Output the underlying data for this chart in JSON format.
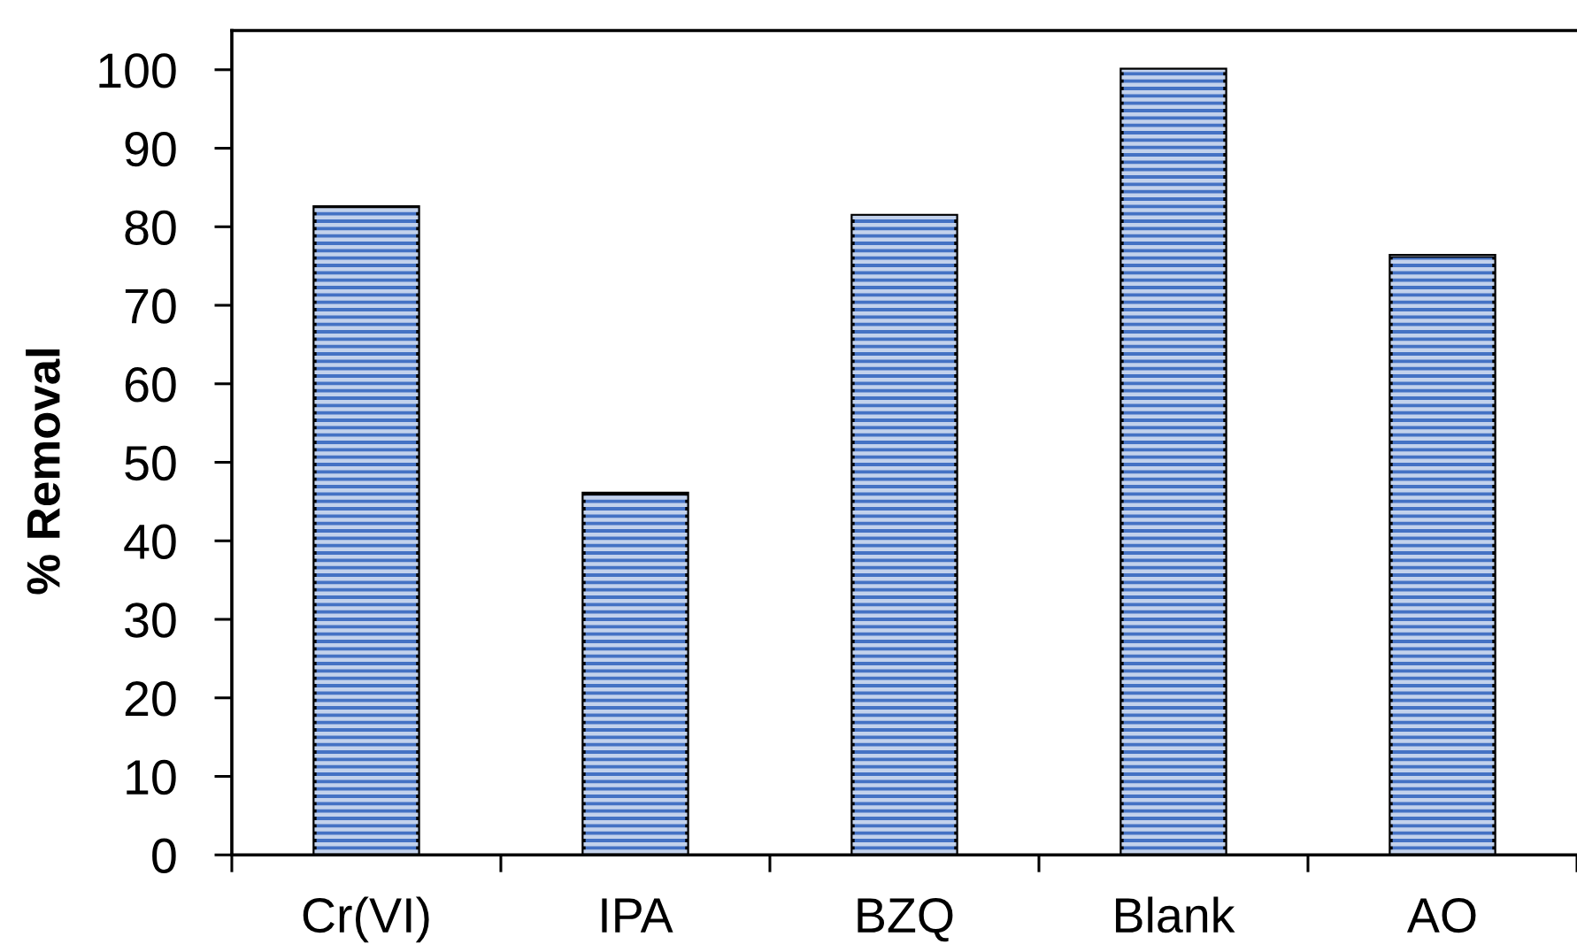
{
  "chart_data": {
    "type": "bar",
    "ylabel": "% Removal",
    "categories": [
      "Cr(VI)",
      "IPA",
      "BZQ",
      "Blank",
      "AO"
    ],
    "values": [
      82.5,
      46,
      81.4,
      100,
      76.3
    ],
    "color": "#4472c4",
    "ylim": [
      0,
      105
    ],
    "yticks": [
      0,
      10,
      20,
      30,
      40,
      50,
      60,
      70,
      80,
      90,
      100
    ]
  }
}
